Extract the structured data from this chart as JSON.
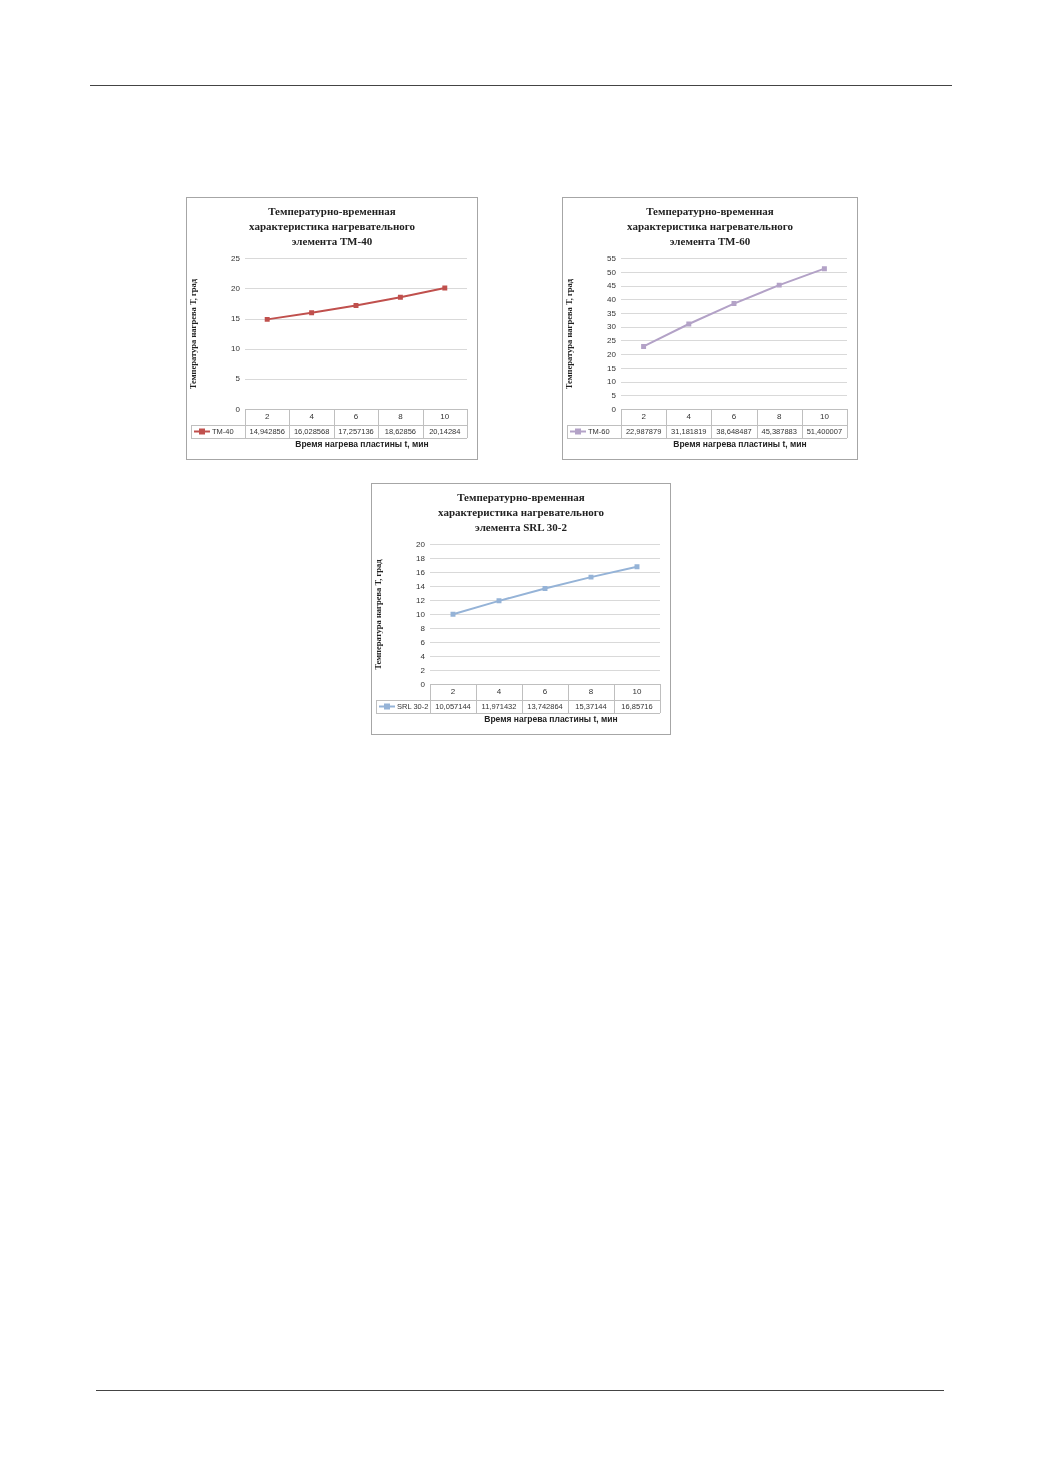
{
  "chart_data": [
    {
      "type": "line",
      "title": "Температурно-временная характеристика нагревательного элемента ТМ-40",
      "xlabel": "Время нагрева пластины t, мин",
      "ylabel": "Температура нагрева Т, град",
      "categories": [
        "2",
        "4",
        "6",
        "8",
        "10"
      ],
      "series": [
        {
          "name": "ТМ-40",
          "color": "#c0504d",
          "values": [
            14.942856,
            16.028568,
            17.257136,
            18.62856,
            20.14284
          ],
          "value_labels": [
            "14,942856",
            "16,028568",
            "17,257136",
            "18,62856",
            "20,14284"
          ]
        }
      ],
      "ylim": [
        0,
        25
      ],
      "yticks": [
        0,
        5,
        10,
        15,
        20,
        25
      ],
      "grid": "y",
      "legend": "bottom",
      "marker": "square",
      "line_style": "solid"
    },
    {
      "type": "line",
      "title": "Температурно-временная характеристика нагревательного элемента ТМ-60",
      "xlabel": "Время нагрева пластины t, мин",
      "ylabel": "Температура нагрева Т, град",
      "categories": [
        "2",
        "4",
        "6",
        "8",
        "10"
      ],
      "series": [
        {
          "name": "ТМ-60",
          "color": "#b3a2c7",
          "values": [
            22.987879,
            31.181819,
            38.648487,
            45.387883,
            51.400007
          ],
          "value_labels": [
            "22,987879",
            "31,181819",
            "38,648487",
            "45,387883",
            "51,400007"
          ]
        }
      ],
      "ylim": [
        0,
        55
      ],
      "yticks": [
        0,
        5,
        10,
        15,
        20,
        25,
        30,
        35,
        40,
        45,
        50,
        55
      ],
      "grid": "y",
      "legend": "bottom",
      "marker": "square",
      "line_style": "solid"
    },
    {
      "type": "line",
      "title": "Температурно-временная характеристика нагревательного элемента SRL 30-2",
      "xlabel": "Время нагрева пластины t, мин",
      "ylabel": "Температура нагрева Т, град",
      "categories": [
        "2",
        "4",
        "6",
        "8",
        "10"
      ],
      "series": [
        {
          "name": "SRL 30-2",
          "color": "#95b3d7",
          "values": [
            10.057144,
            11.971432,
            13.742864,
            15.37144,
            16.85716
          ],
          "value_labels": [
            "10,057144",
            "11,971432",
            "13,742864",
            "15,37144",
            "16,85716"
          ]
        }
      ],
      "ylim": [
        0,
        20
      ],
      "yticks": [
        0,
        2,
        4,
        6,
        8,
        10,
        12,
        14,
        16,
        18,
        20
      ],
      "grid": "y",
      "legend": "bottom",
      "marker": "square",
      "line_style": "solid"
    }
  ]
}
